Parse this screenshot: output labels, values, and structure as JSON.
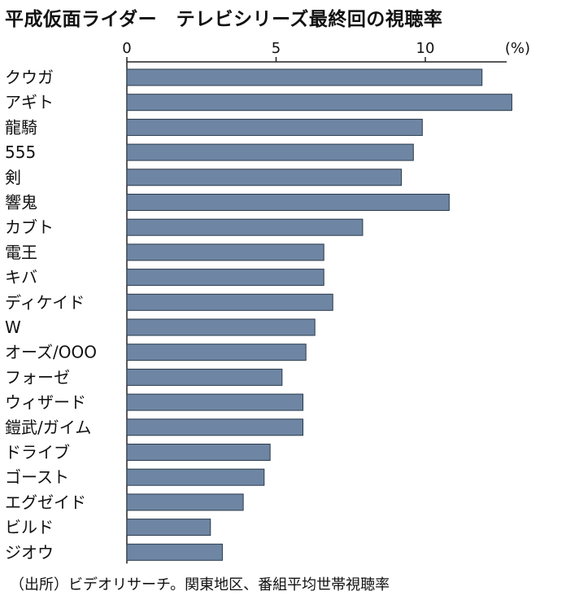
{
  "title": "平成仮面ライダー　テレビシリーズ最終回の視聴率",
  "source": "（出所）ビデオリサーチ。関東地区、番組平均世帯視聴率",
  "colors": {
    "bar": "#6e86a3",
    "bar_edge": "#2a3a4c",
    "axis": "#222222",
    "text": "#111111"
  },
  "chart_data": {
    "type": "bar",
    "orientation": "horizontal",
    "title": "平成仮面ライダー　テレビシリーズ最終回の視聴率",
    "unit_label": "(%)",
    "xlim": [
      0,
      13
    ],
    "ticks": [
      0,
      5,
      10
    ],
    "categories": [
      "クウガ",
      "アギト",
      "龍騎",
      "555",
      "剣",
      "響鬼",
      "カブト",
      "電王",
      "キバ",
      "ディケイド",
      "W",
      "オーズ/OOO",
      "フォーゼ",
      "ウィザード",
      "鎧武/ガイム",
      "ドライブ",
      "ゴースト",
      "エグゼイド",
      "ビルド",
      "ジオウ"
    ],
    "values": [
      11.9,
      12.9,
      9.9,
      9.6,
      9.2,
      10.8,
      7.9,
      6.6,
      6.6,
      6.9,
      6.3,
      6.0,
      5.2,
      5.9,
      5.9,
      4.8,
      4.6,
      3.9,
      2.8,
      3.2
    ]
  }
}
